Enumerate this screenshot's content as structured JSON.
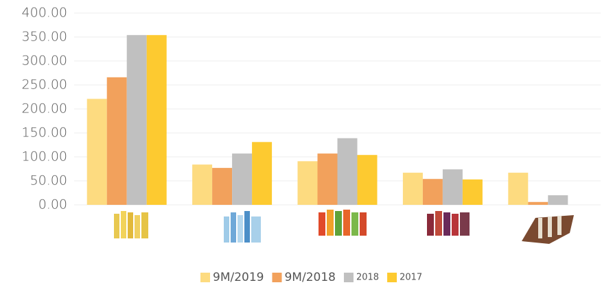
{
  "chart_data": {
    "type": "bar",
    "categories": [
      null,
      null,
      null,
      null,
      null
    ],
    "series": [
      {
        "name": "9M/2019",
        "color": "#fddb80",
        "values": [
          221,
          84,
          91,
          67,
          67
        ]
      },
      {
        "name": "9M/2018",
        "color": "#f2a15c",
        "values": [
          266,
          77,
          107,
          54,
          6
        ]
      },
      {
        "name": "2018",
        "color": "#c0c0c0",
        "values": [
          354,
          107,
          139,
          74,
          20
        ]
      },
      {
        "name": "2017",
        "color": "#fdca30",
        "values": [
          354,
          131,
          104,
          53,
          0
        ]
      }
    ],
    "ylim": [
      0,
      400
    ],
    "yticks": [
      {
        "value": 0,
        "label": "0.00"
      },
      {
        "value": 50,
        "label": "50.00"
      },
      {
        "value": 100,
        "label": "100.00"
      },
      {
        "value": 150,
        "label": "150.00"
      },
      {
        "value": 200,
        "label": "200.00"
      },
      {
        "value": 250,
        "label": "250.00"
      },
      {
        "value": 300,
        "label": "300.00"
      },
      {
        "value": 350,
        "label": "350.00"
      },
      {
        "value": 400,
        "label": "400.00"
      }
    ],
    "grid": true,
    "legend": "bottom"
  }
}
